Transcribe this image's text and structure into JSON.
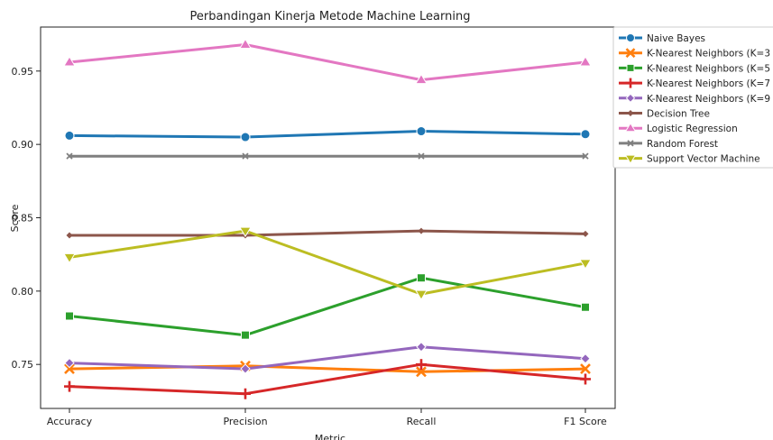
{
  "chart_data": {
    "type": "line",
    "title": "Perbandingan Kinerja Metode Machine Learning",
    "xlabel": "Metric",
    "ylabel": "Score",
    "categories": [
      "Accuracy",
      "Precision",
      "Recall",
      "F1 Score"
    ],
    "ylim": [
      0.72,
      0.98
    ],
    "yticks": [
      "0.75",
      "0.80",
      "0.85",
      "0.90",
      "0.95"
    ],
    "grid": false,
    "legend_position": "outside-right",
    "series": [
      {
        "name": "Naive Bayes",
        "color": "#1f77b4",
        "marker": "circle",
        "values": [
          0.906,
          0.905,
          0.909,
          0.907
        ]
      },
      {
        "name": "K-Nearest Neighbors (K=3",
        "color": "#ff7f0e",
        "marker": "x",
        "values": [
          0.747,
          0.749,
          0.745,
          0.747
        ]
      },
      {
        "name": "K-Nearest Neighbors (K=5",
        "color": "#2ca02c",
        "marker": "square",
        "values": [
          0.783,
          0.77,
          0.809,
          0.789
        ]
      },
      {
        "name": "K-Nearest Neighbors (K=7",
        "color": "#d62728",
        "marker": "plus",
        "values": [
          0.735,
          0.73,
          0.75,
          0.74
        ]
      },
      {
        "name": "K-Nearest Neighbors (K=9",
        "color": "#9467bd",
        "marker": "diamond",
        "values": [
          0.751,
          0.747,
          0.762,
          0.754
        ]
      },
      {
        "name": "Decision Tree",
        "color": "#8c564b",
        "marker": "small-diamond",
        "values": [
          0.838,
          0.838,
          0.841,
          0.839
        ]
      },
      {
        "name": "Logistic Regression",
        "color": "#e377c2",
        "marker": "triangle-up",
        "values": [
          0.956,
          0.968,
          0.944,
          0.956
        ]
      },
      {
        "name": "Random Forest",
        "color": "#7f7f7f",
        "marker": "small-x",
        "values": [
          0.892,
          0.892,
          0.892,
          0.892
        ]
      },
      {
        "name": "Support Vector Machine",
        "color": "#bcbd22",
        "marker": "triangle-down",
        "values": [
          0.823,
          0.841,
          0.798,
          0.819
        ]
      }
    ]
  }
}
